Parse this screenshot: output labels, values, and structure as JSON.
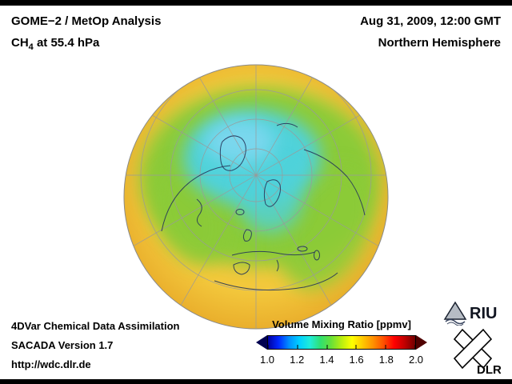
{
  "header": {
    "left": {
      "line1": "GOME−2 / MetOp Analysis",
      "line2_prefix": "CH",
      "line2_sub": "4",
      "line2_suffix": " at 55.4 hPa"
    },
    "right": {
      "line1": "Aug 31, 2009, 12:00 GMT",
      "line2": "Northern Hemisphere"
    }
  },
  "footer": {
    "line1": "4DVar Chemical Data Assimilation",
    "line2": "SACADA Version 1.7",
    "line3": "http://wdc.dlr.de"
  },
  "colorbar": {
    "label": "Volume Mixing Ratio [ppmv]",
    "ticks": [
      "1.0",
      "1.2",
      "1.4",
      "1.6",
      "1.8",
      "2.0"
    ],
    "colors": [
      "#0000a0",
      "#0028ff",
      "#0090ff",
      "#00d0ff",
      "#20ecd8",
      "#30e070",
      "#68e038",
      "#b8ee10",
      "#ffff00",
      "#ffc800",
      "#ff9000",
      "#ff5000",
      "#ff0000",
      "#c00000",
      "#700000"
    ],
    "left_arrow_color": "#000050",
    "right_arrow_color": "#500000"
  },
  "globe_colors": {
    "base_yellow": "#f3c83c",
    "rim_orange": "#e9ad2b",
    "green_mid": "#8bcb38",
    "cyan_low": "#50d2da",
    "light_blue_lowest": "#7fd8f0"
  },
  "logos": {
    "riu_text": "RIU",
    "dlr_text": "DLR"
  },
  "chart_data": {
    "type": "heatmap",
    "title": "GOME−2 / MetOp Analysis — CH4 at 55.4 hPa",
    "datetime": "Aug 31, 2009, 12:00 GMT",
    "region": "Northern Hemisphere",
    "projection": "orthographic (north polar view with graticule and coastlines)",
    "variable": "CH4 volume mixing ratio",
    "units": "ppmv",
    "colorbar_label": "Volume Mixing Ratio [ppmv]",
    "scale_min": 1.0,
    "scale_max": 2.0,
    "scale_ticks": [
      1.0,
      1.2,
      1.4,
      1.6,
      1.8,
      2.0
    ],
    "field_values_estimated": [
      {
        "area": "Arctic polar cap core (light blue/cyan)",
        "approx_value_ppmv": 1.25
      },
      {
        "area": "high-latitude ring ~55–75°N (green)",
        "approx_value_ppmv": 1.4
      },
      {
        "area": "mid-latitudes ~35–55°N (yellow)",
        "approx_value_ppmv": 1.55
      },
      {
        "area": "subtropics toward globe limb (orange-yellow)",
        "approx_value_ppmv": 1.6
      }
    ],
    "source_lines": [
      "4DVar Chemical Data Assimilation",
      "SACADA Version 1.7",
      "http://wdc.dlr.de"
    ]
  }
}
